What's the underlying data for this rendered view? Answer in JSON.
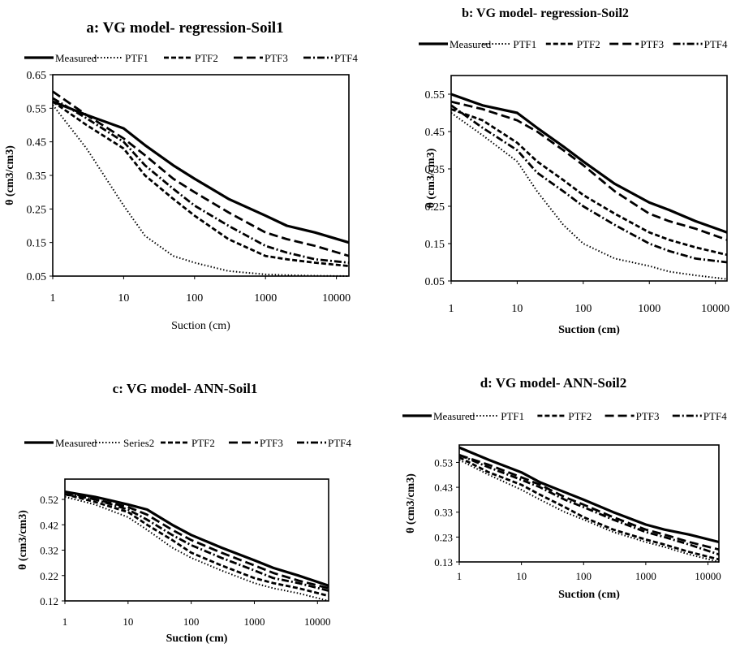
{
  "chart_data": [
    {
      "type": "line",
      "panel": "a",
      "title": "a: VG model- regression-Soil1",
      "xlabel": "Suction (cm)",
      "ylabel": "θ (cm3/cm3)",
      "x_scale": "log",
      "xlim": [
        1,
        15000
      ],
      "ylim": [
        0.05,
        0.65
      ],
      "x_ticks": [
        "1",
        "10",
        "100",
        "1000",
        "10000"
      ],
      "y_ticks": [
        "0.05",
        "0.15",
        "0.25",
        "0.35",
        "0.45",
        "0.55",
        "0.65"
      ],
      "legend_position": "top",
      "series": [
        {
          "name": "Measured",
          "style": "solid",
          "x": [
            1,
            3,
            10,
            20,
            50,
            100,
            300,
            1000,
            2000,
            5000,
            15000
          ],
          "y": [
            0.57,
            0.53,
            0.49,
            0.44,
            0.38,
            0.34,
            0.28,
            0.23,
            0.2,
            0.18,
            0.15
          ]
        },
        {
          "name": "PTF1",
          "style": "dotted",
          "x": [
            1,
            3,
            10,
            20,
            50,
            100,
            300,
            1000,
            2000,
            5000,
            15000
          ],
          "y": [
            0.56,
            0.43,
            0.26,
            0.17,
            0.11,
            0.09,
            0.065,
            0.055,
            0.053,
            0.051,
            0.05
          ]
        },
        {
          "name": "PTF2",
          "style": "short-dash",
          "x": [
            1,
            3,
            10,
            20,
            50,
            100,
            300,
            1000,
            2000,
            5000,
            15000
          ],
          "y": [
            0.57,
            0.5,
            0.43,
            0.35,
            0.28,
            0.23,
            0.16,
            0.11,
            0.1,
            0.09,
            0.08
          ]
        },
        {
          "name": "PTF3",
          "style": "long-dash",
          "x": [
            1,
            3,
            10,
            20,
            50,
            100,
            300,
            1000,
            2000,
            5000,
            15000
          ],
          "y": [
            0.6,
            0.53,
            0.46,
            0.41,
            0.34,
            0.3,
            0.24,
            0.18,
            0.16,
            0.14,
            0.11
          ]
        },
        {
          "name": "PTF4",
          "style": "dash-dot",
          "x": [
            1,
            3,
            10,
            20,
            50,
            100,
            300,
            1000,
            2000,
            5000,
            15000
          ],
          "y": [
            0.58,
            0.52,
            0.45,
            0.38,
            0.31,
            0.26,
            0.2,
            0.14,
            0.12,
            0.1,
            0.09
          ]
        }
      ]
    },
    {
      "type": "line",
      "panel": "b",
      "title": "b: VG model- regression-Soil2",
      "xlabel": "Suction (cm)",
      "ylabel": "θ (cm3/cm3)",
      "x_scale": "log",
      "xlim": [
        1,
        15000
      ],
      "ylim": [
        0.05,
        0.6
      ],
      "x_ticks": [
        "1",
        "10",
        "100",
        "1000",
        "10000"
      ],
      "y_ticks": [
        "0.05",
        "0.15",
        "0.25",
        "0.35",
        "0.45",
        "0.55"
      ],
      "legend_position": "top",
      "series": [
        {
          "name": "Measured",
          "style": "solid",
          "x": [
            1,
            3,
            10,
            20,
            50,
            100,
            300,
            1000,
            2000,
            5000,
            15000
          ],
          "y": [
            0.55,
            0.52,
            0.5,
            0.46,
            0.41,
            0.37,
            0.31,
            0.26,
            0.24,
            0.21,
            0.18
          ]
        },
        {
          "name": "PTF1",
          "style": "dotted",
          "x": [
            1,
            3,
            10,
            20,
            50,
            100,
            300,
            1000,
            2000,
            5000,
            15000
          ],
          "y": [
            0.5,
            0.44,
            0.37,
            0.29,
            0.2,
            0.15,
            0.11,
            0.09,
            0.075,
            0.065,
            0.055
          ]
        },
        {
          "name": "PTF2",
          "style": "short-dash",
          "x": [
            1,
            3,
            10,
            20,
            50,
            100,
            300,
            1000,
            2000,
            5000,
            15000
          ],
          "y": [
            0.51,
            0.48,
            0.42,
            0.37,
            0.32,
            0.28,
            0.23,
            0.18,
            0.16,
            0.14,
            0.12
          ]
        },
        {
          "name": "PTF3",
          "style": "long-dash",
          "x": [
            1,
            3,
            10,
            20,
            50,
            100,
            300,
            1000,
            2000,
            5000,
            15000
          ],
          "y": [
            0.53,
            0.51,
            0.48,
            0.45,
            0.4,
            0.36,
            0.29,
            0.23,
            0.21,
            0.19,
            0.16
          ]
        },
        {
          "name": "PTF4",
          "style": "dash-dot",
          "x": [
            1,
            3,
            10,
            20,
            50,
            100,
            300,
            1000,
            2000,
            5000,
            15000
          ],
          "y": [
            0.52,
            0.46,
            0.4,
            0.34,
            0.29,
            0.25,
            0.2,
            0.15,
            0.13,
            0.11,
            0.1
          ]
        }
      ]
    },
    {
      "type": "line",
      "panel": "c",
      "title": "c: VG model- ANN-Soil1",
      "xlabel": "Suction (cm)",
      "ylabel": "θ (cm3/cm3)",
      "x_scale": "log",
      "xlim": [
        1,
        15000
      ],
      "ylim": [
        0.12,
        0.6
      ],
      "x_ticks": [
        "1",
        "10",
        "100",
        "1000",
        "10000"
      ],
      "y_ticks": [
        "0.12",
        "0.22",
        "0.32",
        "0.42",
        "0.52"
      ],
      "legend_position": "top",
      "series": [
        {
          "name": "Measured",
          "style": "solid",
          "x": [
            1,
            3,
            10,
            20,
            50,
            100,
            300,
            1000,
            2000,
            5000,
            15000
          ],
          "y": [
            0.55,
            0.53,
            0.5,
            0.48,
            0.42,
            0.38,
            0.33,
            0.28,
            0.25,
            0.22,
            0.18
          ]
        },
        {
          "name": "Series2",
          "style": "dotted",
          "x": [
            1,
            3,
            10,
            20,
            50,
            100,
            300,
            1000,
            2000,
            5000,
            15000
          ],
          "y": [
            0.53,
            0.5,
            0.45,
            0.4,
            0.33,
            0.29,
            0.24,
            0.19,
            0.17,
            0.15,
            0.12
          ]
        },
        {
          "name": "PTF2",
          "style": "short-dash",
          "x": [
            1,
            3,
            10,
            20,
            50,
            100,
            300,
            1000,
            2000,
            5000,
            15000
          ],
          "y": [
            0.54,
            0.51,
            0.47,
            0.42,
            0.36,
            0.31,
            0.26,
            0.21,
            0.19,
            0.17,
            0.14
          ]
        },
        {
          "name": "PTF3",
          "style": "long-dash",
          "x": [
            1,
            3,
            10,
            20,
            50,
            100,
            300,
            1000,
            2000,
            5000,
            15000
          ],
          "y": [
            0.55,
            0.52,
            0.49,
            0.46,
            0.4,
            0.36,
            0.31,
            0.26,
            0.23,
            0.2,
            0.17
          ]
        },
        {
          "name": "PTF4",
          "style": "dash-dot",
          "x": [
            1,
            3,
            10,
            20,
            50,
            100,
            300,
            1000,
            2000,
            5000,
            15000
          ],
          "y": [
            0.54,
            0.52,
            0.48,
            0.44,
            0.38,
            0.34,
            0.29,
            0.24,
            0.21,
            0.19,
            0.16
          ]
        }
      ]
    },
    {
      "type": "line",
      "panel": "d",
      "title": "d: VG model- ANN-Soil2",
      "xlabel": "Suction (cm)",
      "ylabel": "θ (cm3/cm3)",
      "x_scale": "log",
      "xlim": [
        1,
        15000
      ],
      "ylim": [
        0.13,
        0.6
      ],
      "x_ticks": [
        "1",
        "10",
        "100",
        "1000",
        "10000"
      ],
      "y_ticks": [
        "0.13",
        "0.23",
        "0.33",
        "0.43",
        "0.53"
      ],
      "legend_position": "top",
      "series": [
        {
          "name": "Measured",
          "style": "solid",
          "x": [
            1,
            3,
            10,
            20,
            50,
            100,
            300,
            1000,
            2000,
            5000,
            15000
          ],
          "y": [
            0.59,
            0.54,
            0.49,
            0.45,
            0.41,
            0.38,
            0.33,
            0.28,
            0.26,
            0.24,
            0.21
          ]
        },
        {
          "name": "PTF1",
          "style": "dotted",
          "x": [
            1,
            3,
            10,
            20,
            50,
            100,
            300,
            1000,
            2000,
            5000,
            15000
          ],
          "y": [
            0.54,
            0.48,
            0.42,
            0.38,
            0.33,
            0.3,
            0.25,
            0.21,
            0.19,
            0.16,
            0.13
          ]
        },
        {
          "name": "PTF2",
          "style": "short-dash",
          "x": [
            1,
            3,
            10,
            20,
            50,
            100,
            300,
            1000,
            2000,
            5000,
            15000
          ],
          "y": [
            0.55,
            0.49,
            0.44,
            0.4,
            0.35,
            0.31,
            0.26,
            0.22,
            0.2,
            0.17,
            0.14
          ]
        },
        {
          "name": "PTF3",
          "style": "long-dash",
          "x": [
            1,
            3,
            10,
            20,
            50,
            100,
            300,
            1000,
            2000,
            5000,
            15000
          ],
          "y": [
            0.56,
            0.52,
            0.47,
            0.44,
            0.39,
            0.36,
            0.31,
            0.26,
            0.24,
            0.21,
            0.18
          ]
        },
        {
          "name": "PTF4",
          "style": "dash-dot",
          "x": [
            1,
            3,
            10,
            20,
            50,
            100,
            300,
            1000,
            2000,
            5000,
            15000
          ],
          "y": [
            0.56,
            0.51,
            0.46,
            0.43,
            0.38,
            0.35,
            0.3,
            0.25,
            0.23,
            0.2,
            0.16
          ]
        }
      ]
    }
  ]
}
